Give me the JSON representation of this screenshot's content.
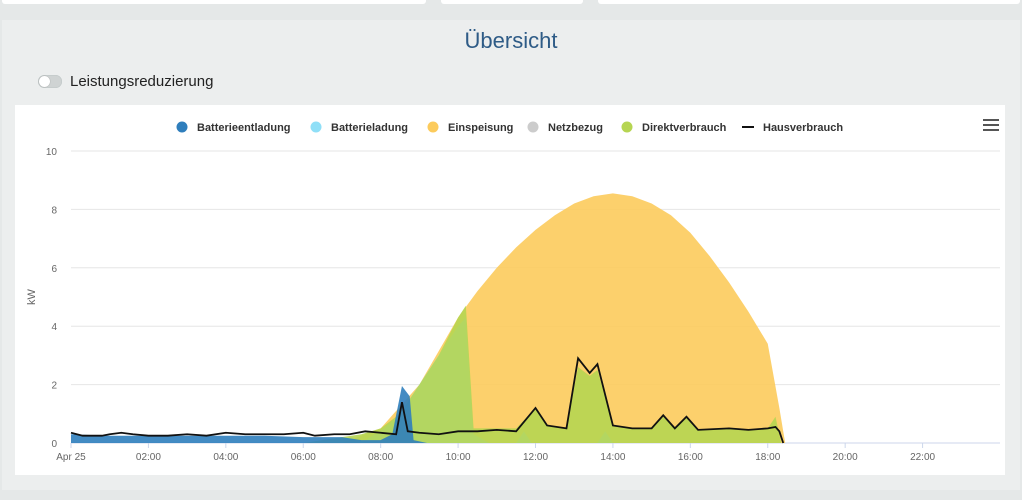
{
  "page": {
    "title": "Übersicht"
  },
  "toggle": {
    "label": "Leistungsreduzierung",
    "on": false
  },
  "chart_data": {
    "type": "area",
    "title": "",
    "xlabel": "",
    "ylabel": "kW",
    "xlim": [
      0,
      24
    ],
    "ylim": [
      0,
      10
    ],
    "x_ticks": [
      {
        "v": 0,
        "label": "Apr 25"
      },
      {
        "v": 2,
        "label": "02:00"
      },
      {
        "v": 4,
        "label": "04:00"
      },
      {
        "v": 6,
        "label": "06:00"
      },
      {
        "v": 8,
        "label": "08:00"
      },
      {
        "v": 10,
        "label": "10:00"
      },
      {
        "v": 12,
        "label": "12:00"
      },
      {
        "v": 14,
        "label": "14:00"
      },
      {
        "v": 16,
        "label": "16:00"
      },
      {
        "v": 18,
        "label": "18:00"
      },
      {
        "v": 20,
        "label": "20:00"
      },
      {
        "v": 22,
        "label": "22:00"
      }
    ],
    "y_ticks": [
      0,
      2,
      4,
      6,
      8,
      10
    ],
    "legend_position": "top-center",
    "series": [
      {
        "name": "Batterieentladung",
        "type": "area",
        "color": "#2f7ebc",
        "points": [
          [
            0,
            0.3
          ],
          [
            1,
            0.25
          ],
          [
            2,
            0.25
          ],
          [
            3,
            0.25
          ],
          [
            4,
            0.25
          ],
          [
            5,
            0.25
          ],
          [
            6,
            0.2
          ],
          [
            7,
            0.2
          ],
          [
            7.5,
            0.1
          ],
          [
            8,
            0.1
          ],
          [
            8.3,
            0.3
          ],
          [
            8.55,
            1.95
          ],
          [
            8.75,
            1.6
          ],
          [
            8.85,
            0.1
          ],
          [
            9.2,
            0
          ],
          [
            24,
            0
          ]
        ]
      },
      {
        "name": "Batterieladung",
        "type": "area",
        "color": "#8fdff7",
        "points": [
          [
            0,
            0
          ],
          [
            7,
            0
          ],
          [
            7.6,
            0.1
          ],
          [
            8.1,
            0.5
          ],
          [
            8.5,
            1.0
          ],
          [
            9,
            2.0
          ],
          [
            9.5,
            3.0
          ],
          [
            10,
            4.0
          ],
          [
            10.2,
            4.3
          ],
          [
            10.4,
            0.3
          ],
          [
            10.8,
            0
          ],
          [
            11.5,
            0
          ],
          [
            11.7,
            0.4
          ],
          [
            11.9,
            0
          ],
          [
            13.6,
            0
          ],
          [
            13.8,
            0.4
          ],
          [
            14,
            0
          ],
          [
            24,
            0
          ]
        ]
      },
      {
        "name": "Einspeisung",
        "type": "area",
        "color": "#fccb5c",
        "points": [
          [
            0,
            0
          ],
          [
            7,
            0
          ],
          [
            8,
            0.5
          ],
          [
            9,
            2.0
          ],
          [
            10,
            4.3
          ],
          [
            10.5,
            5.2
          ],
          [
            11,
            6.0
          ],
          [
            11.5,
            6.7
          ],
          [
            12,
            7.3
          ],
          [
            12.5,
            7.8
          ],
          [
            13,
            8.2
          ],
          [
            13.5,
            8.45
          ],
          [
            14,
            8.55
          ],
          [
            14.5,
            8.45
          ],
          [
            15,
            8.2
          ],
          [
            15.5,
            7.8
          ],
          [
            16,
            7.2
          ],
          [
            16.5,
            6.4
          ],
          [
            17,
            5.5
          ],
          [
            17.5,
            4.5
          ],
          [
            18,
            3.4
          ],
          [
            18.3,
            1.2
          ],
          [
            18.45,
            0
          ],
          [
            24,
            0
          ]
        ]
      },
      {
        "name": "Netzbezug",
        "type": "area",
        "color": "#cccccc",
        "points": [
          [
            0,
            0
          ],
          [
            24,
            0
          ]
        ]
      },
      {
        "name": "Direktverbrauch",
        "type": "area",
        "color": "#b6d552",
        "points": [
          [
            0,
            0
          ],
          [
            6,
            0
          ],
          [
            6.5,
            0.1
          ],
          [
            7,
            0.2
          ],
          [
            7.5,
            0.3
          ],
          [
            8,
            0.5
          ],
          [
            8.5,
            1.0
          ],
          [
            9,
            2.0
          ],
          [
            9.5,
            3.0
          ],
          [
            10,
            4.3
          ],
          [
            10.2,
            4.7
          ],
          [
            10.4,
            0.5
          ],
          [
            11,
            0.5
          ],
          [
            11.5,
            0.5
          ],
          [
            12,
            1.2
          ],
          [
            12.3,
            0.6
          ],
          [
            12.8,
            0.5
          ],
          [
            13.1,
            2.6
          ],
          [
            13.4,
            2.3
          ],
          [
            13.6,
            2.5
          ],
          [
            14,
            0.6
          ],
          [
            14.5,
            0.5
          ],
          [
            15,
            0.5
          ],
          [
            15.3,
            0.9
          ],
          [
            15.6,
            0.5
          ],
          [
            15.9,
            0.85
          ],
          [
            16.2,
            0.45
          ],
          [
            17,
            0.5
          ],
          [
            17.5,
            0.45
          ],
          [
            18,
            0.5
          ],
          [
            18.2,
            0.9
          ],
          [
            18.35,
            0
          ],
          [
            24,
            0
          ]
        ]
      },
      {
        "name": "Hausverbrauch",
        "type": "line",
        "color": "#111111",
        "points": [
          [
            0,
            0.35
          ],
          [
            0.3,
            0.25
          ],
          [
            0.8,
            0.25
          ],
          [
            1,
            0.3
          ],
          [
            1.3,
            0.35
          ],
          [
            1.6,
            0.3
          ],
          [
            2,
            0.25
          ],
          [
            2.5,
            0.25
          ],
          [
            3,
            0.3
          ],
          [
            3.5,
            0.25
          ],
          [
            4,
            0.35
          ],
          [
            4.5,
            0.3
          ],
          [
            5,
            0.3
          ],
          [
            5.5,
            0.3
          ],
          [
            6,
            0.35
          ],
          [
            6.3,
            0.25
          ],
          [
            6.8,
            0.3
          ],
          [
            7.2,
            0.3
          ],
          [
            7.6,
            0.4
          ],
          [
            8,
            0.35
          ],
          [
            8.4,
            0.3
          ],
          [
            8.55,
            1.4
          ],
          [
            8.7,
            0.4
          ],
          [
            9,
            0.35
          ],
          [
            9.5,
            0.3
          ],
          [
            10,
            0.4
          ],
          [
            10.5,
            0.4
          ],
          [
            11,
            0.45
          ],
          [
            11.5,
            0.4
          ],
          [
            12,
            1.2
          ],
          [
            12.3,
            0.6
          ],
          [
            12.8,
            0.5
          ],
          [
            13.1,
            2.9
          ],
          [
            13.4,
            2.4
          ],
          [
            13.6,
            2.7
          ],
          [
            14,
            0.6
          ],
          [
            14.5,
            0.5
          ],
          [
            15,
            0.5
          ],
          [
            15.3,
            0.95
          ],
          [
            15.6,
            0.5
          ],
          [
            15.9,
            0.9
          ],
          [
            16.2,
            0.45
          ],
          [
            17,
            0.5
          ],
          [
            17.5,
            0.45
          ],
          [
            18,
            0.5
          ],
          [
            18.2,
            0.55
          ],
          [
            18.3,
            0.4
          ],
          [
            18.4,
            0
          ]
        ]
      }
    ]
  }
}
